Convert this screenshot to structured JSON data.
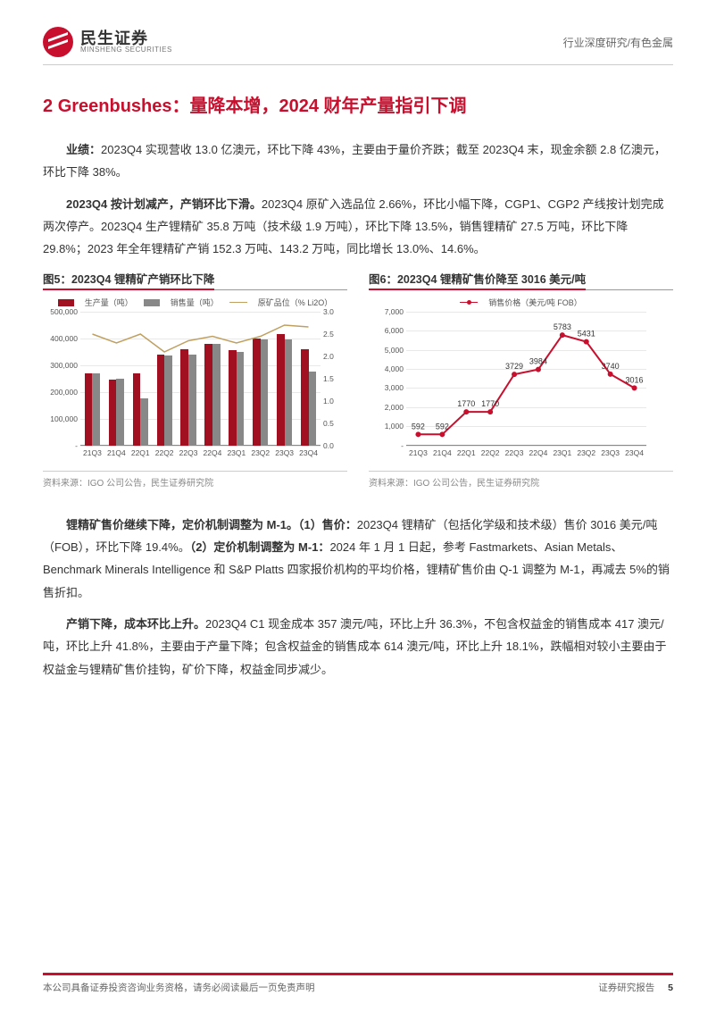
{
  "header": {
    "logo_cn": "民生证券",
    "logo_en": "MINSHENG SECURITIES",
    "right_text": "行业深度研究/有色金属"
  },
  "section": {
    "number": "2",
    "title_red": "Greenbushes：量降本增，2024 财年产量指引下调"
  },
  "paragraphs": {
    "p1_lead": "业绩：",
    "p1_body": "2023Q4 实现营收 13.0 亿澳元，环比下降 43%，主要由于量价齐跌；截至 2023Q4 末，现金余额 2.8 亿澳元，环比下降 38%。",
    "p2_lead": "2023Q4 按计划减产，产销环比下滑。",
    "p2_body": "2023Q4 原矿入选品位 2.66%，环比小幅下降，CGP1、CGP2 产线按计划完成两次停产。2023Q4 生产锂精矿 35.8 万吨（技术级 1.9 万吨），环比下降 13.5%，销售锂精矿 27.5 万吨，环比下降 29.8%；2023 年全年锂精矿产销 152.3 万吨、143.2 万吨，同比增长 13.0%、14.6%。",
    "p3_lead": "锂精矿售价继续下降，定价机制调整为 M-1。（1）售价：",
    "p3_body_a": "2023Q4 锂精矿（包括化学级和技术级）售价 3016 美元/吨（FOB），环比下降 19.4%。",
    "p3_lead_b": "（2）定价机制调整为 M-1：",
    "p3_body_b": "2024 年 1 月 1 日起，参考 Fastmarkets、Asian Metals、Benchmark Minerals Intelligence 和 S&P Platts 四家报价机构的平均价格，锂精矿售价由 Q-1 调整为 M-1，再减去 5%的销售折扣。",
    "p4_lead": "产销下降，成本环比上升。",
    "p4_body": "2023Q4 C1 现金成本 357 澳元/吨，环比上升 36.3%，不包含权益金的销售成本 417 澳元/吨，环比上升 41.8%，主要由于产量下降；包含权益金的销售成本 614 澳元/吨，环比上升 18.1%，跌幅相对较小主要由于权益金与锂精矿售价挂钩，矿价下降，权益金同步减少。"
  },
  "chart5": {
    "title": "图5：2023Q4 锂精矿产销环比下降",
    "legend": {
      "prod": "生产量（吨）",
      "sale": "销售量（吨）",
      "ore": "原矿品位（% Li2O）"
    },
    "colors": {
      "prod": "#a01020",
      "sale": "#888888",
      "ore": "#c0a060",
      "grid": "#e8e8e8"
    },
    "y_left": {
      "min": 0,
      "max": 500000,
      "step": 100000
    },
    "y_right": {
      "min": 0,
      "max": 3.0,
      "step": 0.5
    },
    "categories": [
      "21Q3",
      "21Q4",
      "22Q1",
      "22Q2",
      "22Q3",
      "22Q4",
      "23Q1",
      "23Q2",
      "23Q3",
      "23Q4"
    ],
    "production": [
      270000,
      245000,
      270000,
      340000,
      360000,
      380000,
      355000,
      400000,
      415000,
      358000
    ],
    "sales": [
      270000,
      250000,
      175000,
      335000,
      340000,
      380000,
      350000,
      395000,
      395000,
      275000
    ],
    "ore_grade": [
      2.5,
      2.3,
      2.5,
      2.1,
      2.35,
      2.45,
      2.3,
      2.45,
      2.7,
      2.66
    ],
    "source": "资料来源：IGO 公司公告，民生证券研究院"
  },
  "chart6": {
    "title": "图6：2023Q4 锂精矿售价降至 3016 美元/吨",
    "legend_label": "销售价格（美元/吨 FOB）",
    "color": "#c8102e",
    "categories": [
      "21Q3",
      "21Q4",
      "22Q1",
      "22Q2",
      "22Q3",
      "22Q4",
      "23Q1",
      "23Q2",
      "23Q3",
      "23Q4"
    ],
    "values": [
      592,
      592,
      1770,
      1770,
      3729,
      3984,
      5783,
      5431,
      3740,
      3016
    ],
    "y": {
      "min": 0,
      "max": 7000,
      "step": 1000
    },
    "source": "资料来源：IGO 公司公告，民生证券研究院"
  },
  "footer": {
    "left": "本公司具备证券投资咨询业务资格，请务必阅读最后一页免责声明",
    "right_label": "证券研究报告",
    "page": "5"
  }
}
